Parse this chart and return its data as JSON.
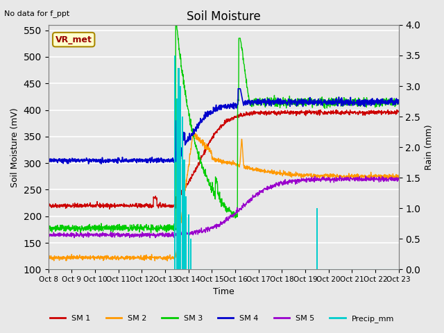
{
  "title": "Soil Moisture",
  "xlabel": "Time",
  "ylabel_left": "Soil Moisture (mV)",
  "ylabel_right": "Rain (mm)",
  "ylim_left": [
    100,
    560
  ],
  "ylim_right": [
    0.0,
    4.0
  ],
  "annotation_text": "No data for f_ppt",
  "vr_met_label": "VR_met",
  "bg_color": "#e8e8e8",
  "grid_color": "white",
  "x_tick_labels": [
    "Oct 8",
    "Oct 9",
    "Oct 10",
    "Oct 11",
    "Oct 12",
    "Oct 13",
    "Oct 14",
    "Oct 15",
    "Oct 16",
    "Oct 17",
    "Oct 18",
    "Oct 19",
    "Oct 20",
    "Oct 21",
    "Oct 22",
    "Oct 23"
  ],
  "x_tick_positions": [
    0,
    1,
    2,
    3,
    4,
    5,
    6,
    7,
    8,
    9,
    10,
    11,
    12,
    13,
    14,
    15
  ],
  "yticks_left": [
    100,
    150,
    200,
    250,
    300,
    350,
    400,
    450,
    500,
    550
  ],
  "yticks_right": [
    0.0,
    0.5,
    1.0,
    1.5,
    2.0,
    2.5,
    3.0,
    3.5,
    4.0
  ],
  "colors": {
    "SM1": "#cc0000",
    "SM2": "#ff9900",
    "SM3": "#00cc00",
    "SM4": "#0000cc",
    "SM5": "#9900cc",
    "Precip": "#00cccc"
  },
  "legend_labels": [
    "SM 1",
    "SM 2",
    "SM 3",
    "SM 4",
    "SM 5",
    "Precip_mm"
  ]
}
